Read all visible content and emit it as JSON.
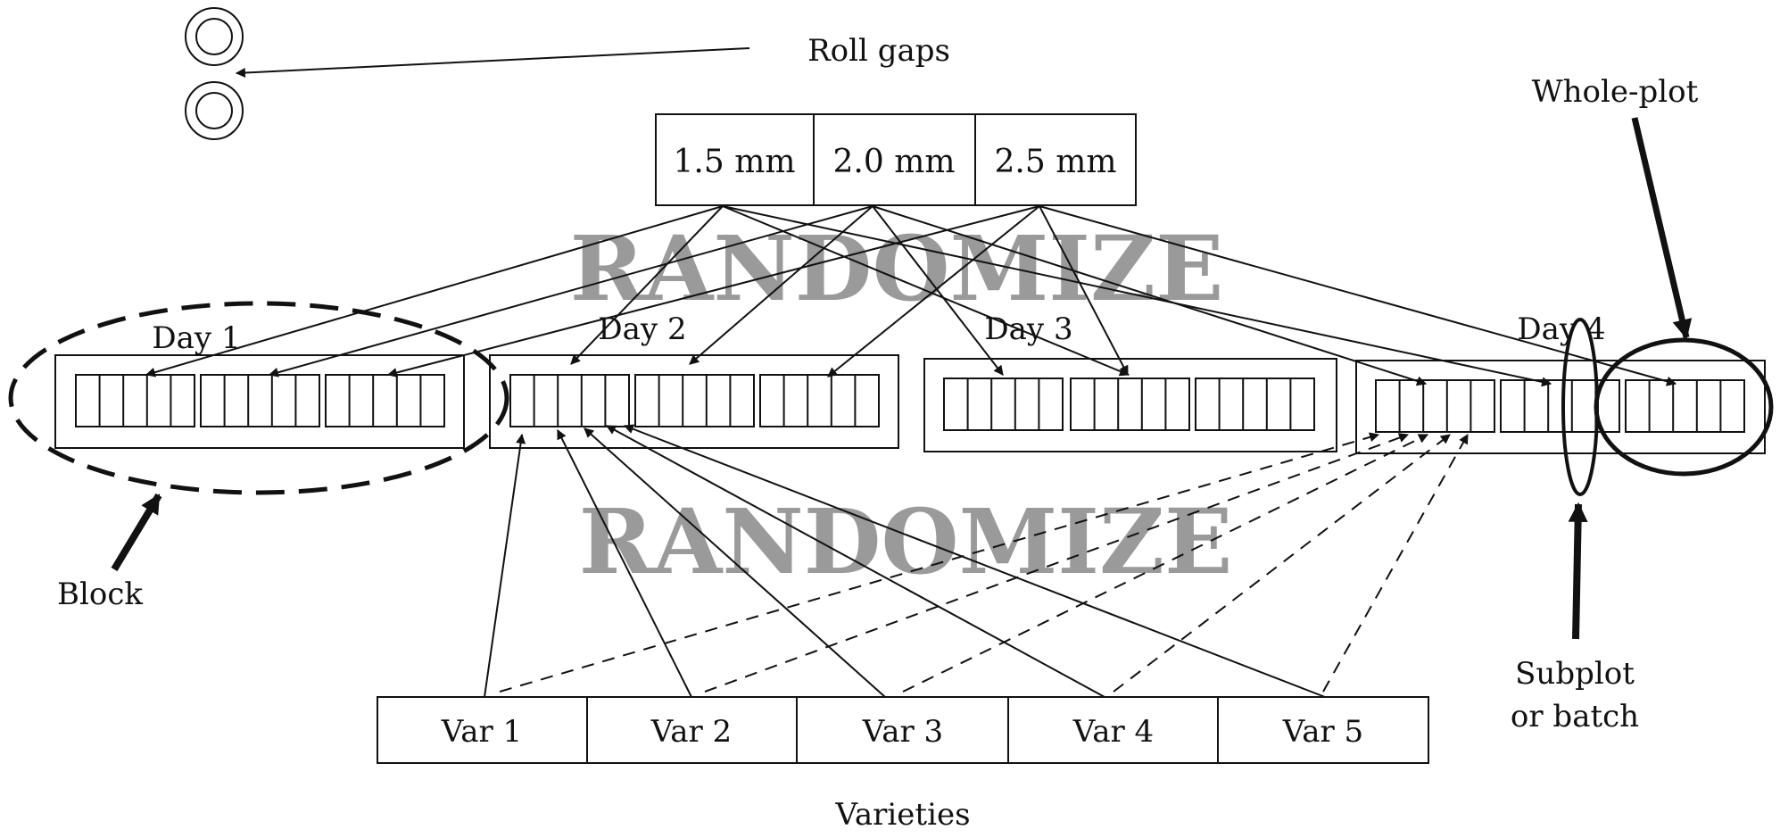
{
  "labels": {
    "roll_gaps": "Roll gaps",
    "whole_plot": "Whole-plot",
    "block": "Block",
    "subplot_line1": "Subplot",
    "subplot_line2": "or batch",
    "varieties": "Varieties",
    "randomize_top": "RANDOMIZE",
    "randomize_bottom": "RANDOMIZE"
  },
  "roll_gaps": [
    "1.5 mm",
    "2.0 mm",
    "2.5 mm"
  ],
  "days": [
    "Day 1",
    "Day 2",
    "Day 3",
    "Day 4"
  ],
  "varieties": [
    "Var 1",
    "Var 2",
    "Var 3",
    "Var 4",
    "Var 5"
  ],
  "colors": {
    "ink": "#111111",
    "watermark": "#9a9a9a"
  }
}
